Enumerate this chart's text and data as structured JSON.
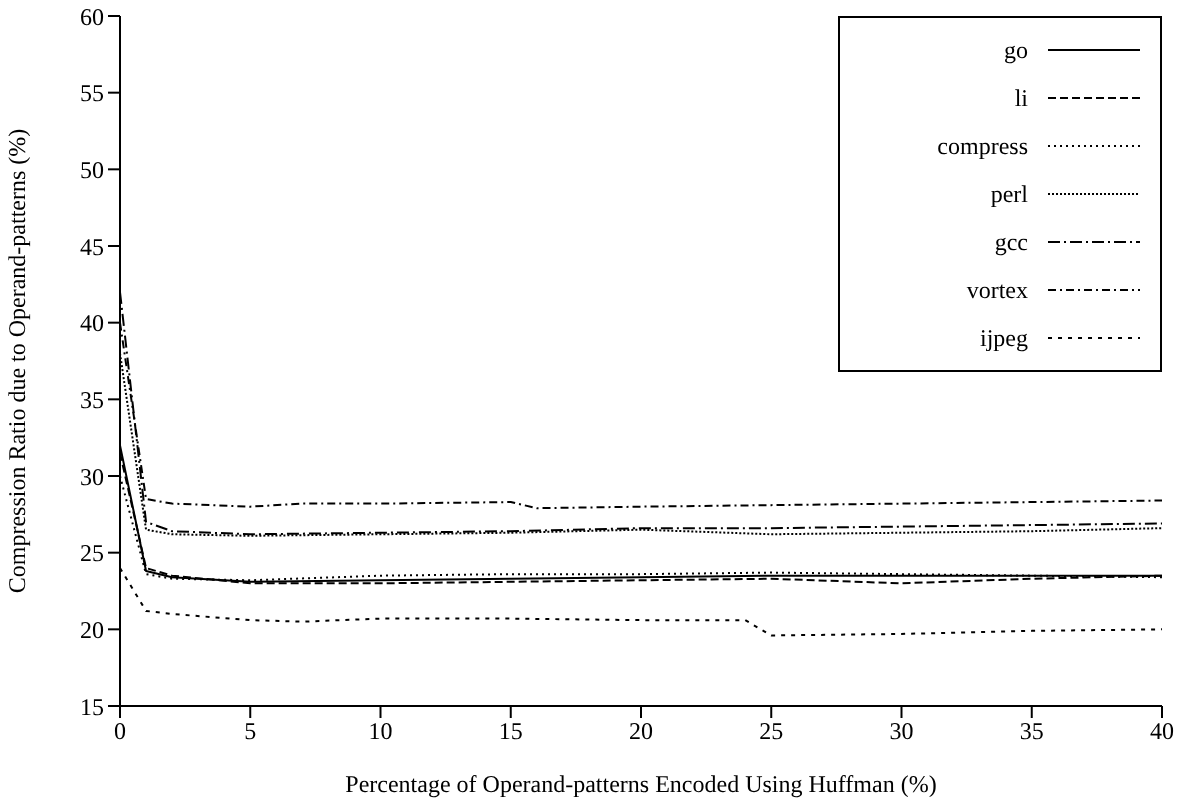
{
  "chart_data": {
    "type": "line",
    "xlabel": "Percentage of Operand-patterns Encoded Using Huffman (%)",
    "ylabel": "Compression Ratio due to Operand-patterns (%)",
    "xlim": [
      0,
      40
    ],
    "xticks": [
      0,
      5,
      10,
      15,
      20,
      25,
      30,
      35,
      40
    ],
    "ylim": [
      15,
      60
    ],
    "yticks": [
      15,
      20,
      25,
      30,
      35,
      40,
      45,
      50,
      55,
      60
    ],
    "grid": false,
    "legend": "top right",
    "marker": "none",
    "series": [
      {
        "name": "go",
        "color": "#000000",
        "line_style": "solid",
        "x": [
          0,
          1,
          2,
          5,
          10,
          15,
          20,
          25,
          30,
          35,
          40
        ],
        "values": [
          32,
          23.8,
          23.4,
          23.1,
          23.2,
          23.3,
          23.4,
          23.5,
          23.5,
          23.5,
          23.5
        ]
      },
      {
        "name": "li",
        "color": "#000000",
        "line_style": "dashed",
        "x": [
          0,
          1,
          2,
          5,
          10,
          15,
          20,
          25,
          30,
          35,
          40
        ],
        "values": [
          31.5,
          24,
          23.5,
          23,
          23,
          23.1,
          23.2,
          23.3,
          23,
          23.3,
          23.5
        ]
      },
      {
        "name": "compress",
        "color": "#000000",
        "line_style": "dotted",
        "x": [
          0,
          1,
          2,
          5,
          10,
          15,
          20,
          25,
          30,
          35,
          40
        ],
        "values": [
          30,
          23.6,
          23.3,
          23.2,
          23.5,
          23.6,
          23.6,
          23.7,
          23.6,
          23.5,
          23.4
        ]
      },
      {
        "name": "perl",
        "color": "#000000",
        "line_style": "dotted",
        "x": [
          0,
          1,
          2,
          5,
          10,
          15,
          20,
          25,
          30,
          35,
          40
        ],
        "values": [
          38,
          26.5,
          26.2,
          26.1,
          26.2,
          26.3,
          26.5,
          26.2,
          26.3,
          26.4,
          26.6
        ]
      },
      {
        "name": "gcc",
        "color": "#000000",
        "line_style": "dashed",
        "x": [
          0,
          1,
          2,
          5,
          10,
          15,
          20,
          25,
          30,
          35,
          40
        ],
        "values": [
          42,
          27,
          26.4,
          26.2,
          26.3,
          26.4,
          26.6,
          26.6,
          26.7,
          26.8,
          26.9
        ]
      },
      {
        "name": "vortex",
        "color": "#000000",
        "line_style": "dashed",
        "x": [
          0,
          1,
          2,
          5,
          7,
          10,
          15,
          16,
          20,
          25,
          30,
          35,
          40
        ],
        "values": [
          40,
          28.5,
          28.2,
          28,
          28.2,
          28.2,
          28.3,
          27.9,
          28,
          28.1,
          28.2,
          28.3,
          28.4
        ]
      },
      {
        "name": "ijpeg",
        "color": "#000000",
        "line_style": "dotted",
        "x": [
          0,
          1,
          2,
          5,
          7,
          10,
          15,
          20,
          24,
          25,
          30,
          35,
          40
        ],
        "values": [
          24,
          21.2,
          21,
          20.6,
          20.5,
          20.7,
          20.7,
          20.6,
          20.6,
          19.6,
          19.7,
          19.9,
          20
        ]
      }
    ]
  }
}
